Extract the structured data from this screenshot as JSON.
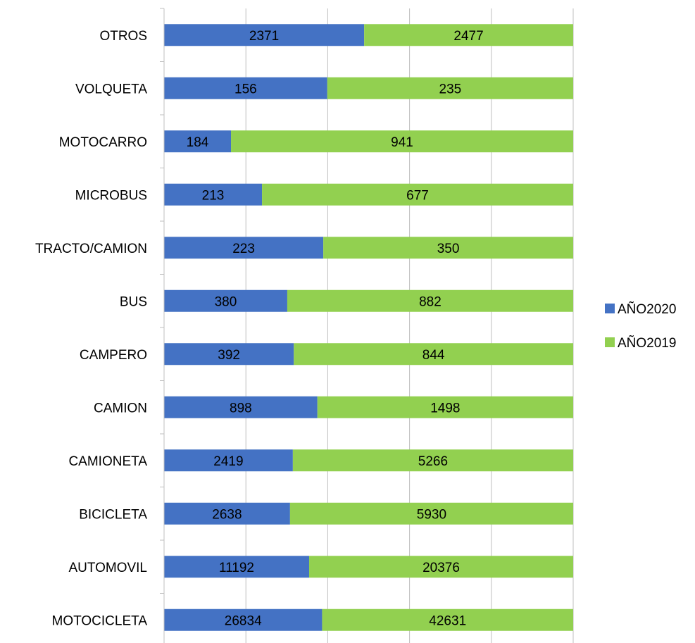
{
  "chart_data": {
    "type": "bar",
    "orientation": "horizontal",
    "stacking": "percent",
    "categories": [
      "MOTOCICLETA",
      "AUTOMOVIL",
      "BICICLETA",
      "CAMIONETA",
      "CAMION",
      "CAMPERO",
      "BUS",
      "TRACTO/CAMION",
      "MICROBUS",
      "MOTOCARRO",
      "VOLQUETA",
      "OTROS"
    ],
    "series": [
      {
        "name": "AÑO2020",
        "color": "#4472C4",
        "values": [
          26834,
          11192,
          2638,
          2419,
          898,
          392,
          380,
          223,
          213,
          184,
          156,
          2371
        ]
      },
      {
        "name": "AÑO2019",
        "color": "#92D050",
        "values": [
          42631,
          20376,
          5930,
          5266,
          1498,
          844,
          882,
          350,
          677,
          941,
          235,
          2477
        ]
      }
    ],
    "xlim": [
      0,
      1
    ],
    "grid": true,
    "legend": "right",
    "data_labels": true
  }
}
